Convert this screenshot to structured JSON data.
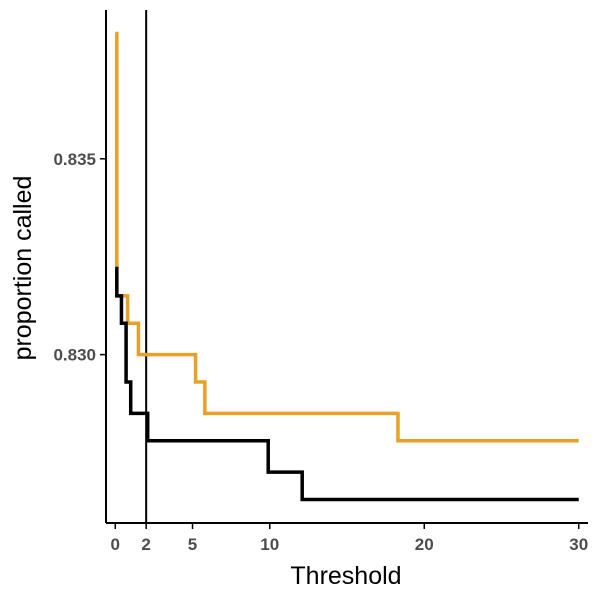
{
  "chart_data": {
    "type": "line",
    "step": true,
    "xlabel": "Threshold",
    "ylabel": "proportion called",
    "xlim": [
      -0.6,
      30.6
    ],
    "ylim": [
      0.8257,
      0.8388
    ],
    "x_ticks": [
      0,
      2,
      5,
      10,
      20,
      30
    ],
    "y_ticks": [
      0.83,
      0.835
    ],
    "y_tick_labels": [
      "0.830",
      "0.835"
    ],
    "grid": false,
    "legend": "none",
    "reference_line": {
      "orientation": "vertical",
      "x": 2,
      "color": "#000000"
    },
    "series": [
      {
        "color": "#e8a126",
        "points": [
          [
            0,
            0.8382
          ],
          [
            0.1,
            0.8315
          ],
          [
            0.8,
            0.8308
          ],
          [
            1.5,
            0.83
          ],
          [
            5.2,
            0.8293
          ],
          [
            5.8,
            0.8285
          ],
          [
            18.3,
            0.8278
          ],
          [
            30,
            0.8278
          ]
        ]
      },
      {
        "color": "#000000",
        "points": [
          [
            0,
            0.8322
          ],
          [
            0.1,
            0.8315
          ],
          [
            0.4,
            0.8308
          ],
          [
            0.7,
            0.8293
          ],
          [
            1.0,
            0.8285
          ],
          [
            2.1,
            0.8278
          ],
          [
            9.9,
            0.827
          ],
          [
            12.1,
            0.8263
          ],
          [
            30,
            0.8263
          ]
        ]
      }
    ]
  }
}
